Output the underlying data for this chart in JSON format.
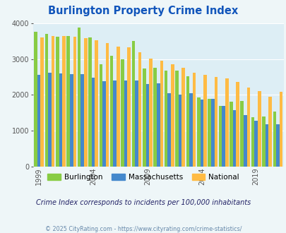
{
  "title": "Burlington Property Crime Index",
  "years": [
    1999,
    2000,
    2001,
    2002,
    2003,
    2004,
    2005,
    2006,
    2007,
    2008,
    2009,
    2010,
    2011,
    2012,
    2013,
    2014,
    2015,
    2016,
    2017,
    2018,
    2019,
    2020,
    2021
  ],
  "burlington": [
    3760,
    3700,
    3620,
    3650,
    3880,
    3600,
    2850,
    3100,
    3000,
    3510,
    2730,
    2760,
    2680,
    2680,
    2530,
    1930,
    1900,
    1700,
    1820,
    1830,
    1380,
    1390,
    1540
  ],
  "massachusetts": [
    2560,
    2630,
    2600,
    2590,
    2590,
    2490,
    2380,
    2400,
    2400,
    2410,
    2310,
    2320,
    2040,
    2000,
    2050,
    1880,
    1900,
    1700,
    1580,
    1440,
    1280,
    1190,
    1190
  ],
  "national": [
    3610,
    3650,
    3650,
    3620,
    3590,
    3530,
    3450,
    3350,
    3330,
    3200,
    3020,
    2950,
    2860,
    2750,
    2620,
    2560,
    2510,
    2460,
    2360,
    2200,
    2110,
    1950,
    2090
  ],
  "burlington_color": "#88cc44",
  "massachusetts_color": "#4488cc",
  "national_color": "#ffbb44",
  "bg_color": "#eef6f8",
  "plot_bg": "#ddeef5",
  "ylim": [
    0,
    4000
  ],
  "yticks": [
    0,
    1000,
    2000,
    3000,
    4000
  ],
  "tick_years": [
    1999,
    2004,
    2009,
    2014,
    2019
  ],
  "subtitle": "Crime Index corresponds to incidents per 100,000 inhabitants",
  "footer": "© 2025 CityRating.com - https://www.cityrating.com/crime-statistics/",
  "title_color": "#1155bb",
  "subtitle_color": "#222266",
  "footer_color": "#6688aa"
}
